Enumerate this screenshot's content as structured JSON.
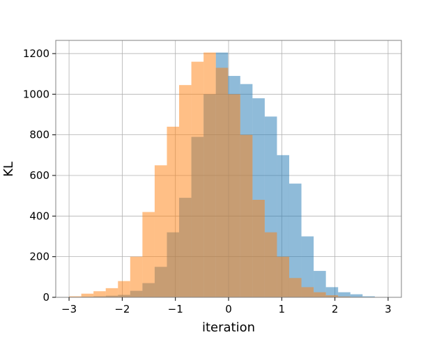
{
  "chart_data": {
    "type": "bar",
    "title": "",
    "xlabel": "iteration",
    "ylabel": "KL",
    "xlim": [
      -3.25,
      3.25
    ],
    "ylim": [
      0,
      1265
    ],
    "xticks": [
      -3,
      -2,
      -1,
      0,
      1,
      2,
      3
    ],
    "xtick_labels": [
      "−3",
      "−2",
      "−1",
      "0",
      "1",
      "2",
      "3"
    ],
    "yticks": [
      0,
      200,
      400,
      600,
      800,
      1000,
      1200
    ],
    "ytick_labels": [
      "0",
      "200",
      "400",
      "600",
      "800",
      "1000",
      "1200"
    ],
    "grid": true,
    "legend": "none",
    "colors": {
      "series1": "#1f77b4",
      "series2": "#ff7f0e",
      "opacity": 0.5,
      "grid": "#b0b0b0",
      "spine": "#808080"
    },
    "series": [
      {
        "bin_edges": [
          -3.0,
          -2.77,
          -2.54,
          -2.31,
          -2.08,
          -1.85,
          -1.62,
          -1.39,
          -1.16,
          -0.93,
          -0.7,
          -0.47,
          -0.24,
          -0.01,
          0.22,
          0.45,
          0.68,
          0.91,
          1.14,
          1.37,
          1.6,
          1.83,
          2.06,
          2.29,
          2.52,
          2.75
        ],
        "values": [
          2,
          3,
          5,
          8,
          12,
          32,
          70,
          150,
          320,
          490,
          790,
          1000,
          1205,
          1090,
          1050,
          980,
          890,
          700,
          560,
          300,
          130,
          50,
          25,
          15,
          5
        ]
      },
      {
        "bin_edges": [
          -3.0,
          -2.77,
          -2.54,
          -2.31,
          -2.08,
          -1.85,
          -1.62,
          -1.39,
          -1.16,
          -0.93,
          -0.7,
          -0.47,
          -0.24,
          -0.01,
          0.22,
          0.45,
          0.68,
          0.91,
          1.14,
          1.37,
          1.6,
          1.83,
          2.06,
          2.29,
          2.52,
          2.75
        ],
        "values": [
          5,
          18,
          30,
          45,
          80,
          200,
          420,
          650,
          840,
          1045,
          1160,
          1205,
          1130,
          1000,
          800,
          480,
          320,
          200,
          95,
          50,
          25,
          10,
          4,
          2,
          1
        ]
      }
    ]
  }
}
